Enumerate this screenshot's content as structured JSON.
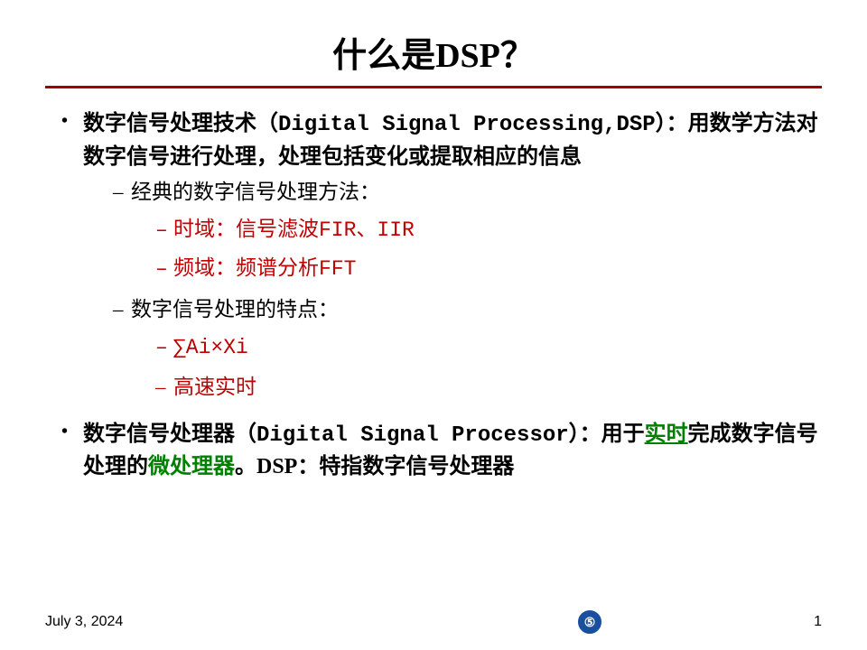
{
  "title": "什么是DSP？",
  "bullets": {
    "b1": {
      "strong": "数字信号处理技术",
      "paren": "（Digital Signal Processing,DSP）：",
      "rest1": "用数学方法对数字信号进行处理，处理包括变化或提取相应的信息"
    },
    "b2a": "经典的数字信号处理方法：",
    "b3a": "时域：信号滤波FIR、IIR",
    "b3b": "频域：频谱分析FFT",
    "b2b": "数字信号处理的特点：",
    "b3c": "∑Ai×Xi",
    "b3d": "高速实时",
    "b4": {
      "strong": "数字信号处理器",
      "paren": "（Digital Signal Processor）：",
      "t1": "用于",
      "link": "实时",
      "t2": "完成数字信号处理的",
      "green": "微处理器",
      "t3": "。DSP：特指数字信号处理器"
    }
  },
  "footer": {
    "date": "July 3, 2024",
    "page": "1",
    "logo_text": "⑤"
  },
  "colors": {
    "accent_red": "#c00000",
    "rule_red": "#a00000",
    "green": "#008000",
    "logo_bg": "#1a4fa0"
  }
}
